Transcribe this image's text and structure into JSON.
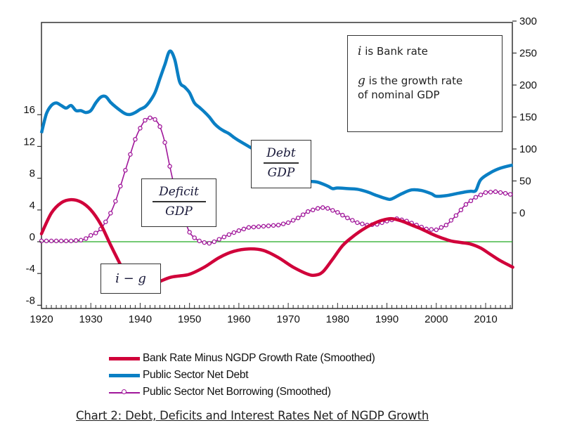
{
  "chart_data": {
    "type": "line",
    "title": "Chart 2: Debt, Deficits and Interest Rates Net of NGDP Growth",
    "xlabel": "",
    "ylabel_left": "",
    "ylabel_right": "",
    "x_range": [
      1920,
      2015.5
    ],
    "x_ticks": [
      1920,
      1930,
      1940,
      1950,
      1960,
      1970,
      1980,
      1990,
      2000,
      2010
    ],
    "y_left_range": [
      -8,
      20
    ],
    "y_left_ticks": [
      -8,
      -4,
      0,
      4,
      8,
      12,
      16
    ],
    "y_right_range": [
      -50,
      300
    ],
    "y_right_ticks": [
      0,
      50,
      100,
      150,
      200,
      250,
      300
    ],
    "grid": false,
    "zero_line": {
      "axis": "left",
      "value": 0,
      "color": "#22aa22"
    },
    "legend_position": "bottom",
    "series": [
      {
        "name": "Bank Rate Minus NGDP Growth Rate (Smoothed)",
        "axis": "left",
        "color": "#d0003a",
        "style": "thick-line",
        "x": [
          1920,
          1922,
          1924,
          1926,
          1928,
          1930,
          1932,
          1934,
          1936,
          1944,
          1946,
          1948,
          1950,
          1953,
          1956,
          1959,
          1962,
          1965,
          1968,
          1971,
          1974,
          1975.5,
          1977,
          1979,
          1981,
          1983,
          1985,
          1987,
          1989,
          1991,
          1993,
          1995,
          1997,
          1999,
          2001,
          2003,
          2005,
          2007,
          2009,
          2011,
          2013,
          2015.5
        ],
        "values": [
          1.0,
          3.6,
          4.9,
          5.3,
          5.0,
          4.0,
          2.2,
          -0.4,
          -2.9,
          -5.0,
          -4.5,
          -4.3,
          -4.1,
          -3.2,
          -2.0,
          -1.2,
          -0.9,
          -1.1,
          -2.0,
          -3.2,
          -4.1,
          -4.2,
          -3.8,
          -2.2,
          -0.5,
          0.6,
          1.5,
          2.2,
          2.7,
          2.9,
          2.6,
          2.1,
          1.6,
          1.0,
          0.5,
          0.1,
          -0.1,
          -0.3,
          -0.8,
          -1.6,
          -2.4,
          -3.2
        ]
      },
      {
        "name": "Public Sector Net Debt",
        "axis": "right",
        "color": "#0a7fc4",
        "style": "thick-line",
        "x": [
          1920,
          1921,
          1922,
          1923,
          1924,
          1925,
          1926,
          1927,
          1928,
          1929,
          1930,
          1931,
          1932,
          1933,
          1934,
          1935,
          1936,
          1937,
          1938,
          1939,
          1940,
          1941,
          1942,
          1943,
          1944,
          1945,
          1946,
          1947,
          1948,
          1949,
          1950,
          1951,
          1952,
          1953,
          1954,
          1955,
          1956,
          1957,
          1958,
          1959,
          1960,
          1962,
          1964,
          1966,
          1968,
          1970,
          1972,
          1974,
          1976,
          1978,
          1979,
          1980,
          1982,
          1984,
          1986,
          1988,
          1990,
          1991,
          1993,
          1995,
          1997,
          1999,
          2000,
          2002,
          2004,
          2006,
          2007,
          2008,
          2009,
          2011,
          2013,
          2015.5
        ],
        "values": [
          125,
          155,
          168,
          172,
          168,
          164,
          168,
          160,
          160,
          157,
          160,
          172,
          181,
          182,
          173,
          166,
          160,
          155,
          154,
          157,
          162,
          166,
          175,
          188,
          210,
          232,
          253,
          240,
          205,
          197,
          188,
          172,
          165,
          158,
          150,
          140,
          133,
          128,
          124,
          118,
          113,
          104,
          95,
          86,
          76,
          68,
          56,
          50,
          48,
          42,
          38,
          39,
          38,
          37,
          33,
          27,
          22,
          22,
          30,
          36,
          35,
          30,
          26,
          27,
          30,
          33,
          34,
          35,
          52,
          63,
          70,
          75
        ]
      },
      {
        "name": "Public Sector Net Borrowing (Smoothed)",
        "axis": "left",
        "color": "#a0169a",
        "style": "line-with-circle-markers",
        "x": [
          1920,
          1922,
          1924,
          1926,
          1928,
          1929,
          1930,
          1931,
          1932,
          1933,
          1934,
          1935,
          1936,
          1937,
          1938,
          1939,
          1940,
          1941,
          1942,
          1943,
          1944,
          1945,
          1946,
          1947,
          1948,
          1949,
          1950,
          1951,
          1952,
          1953,
          1954,
          1955,
          1956,
          1958,
          1960,
          1962,
          1964,
          1966,
          1968,
          1970,
          1972,
          1974,
          1976,
          1977,
          1978,
          1980,
          1982,
          1984,
          1986,
          1988,
          1990,
          1992,
          1994,
          1996,
          1998,
          2000,
          2002,
          2004,
          2006,
          2008,
          2010,
          2012,
          2014,
          2015.5
        ],
        "values": [
          0.1,
          0.1,
          0.1,
          0.1,
          0.2,
          0.4,
          0.8,
          1.1,
          1.6,
          2.5,
          3.6,
          5.1,
          7.0,
          9.0,
          11.0,
          12.9,
          14.3,
          15.3,
          15.6,
          15.4,
          14.5,
          12.5,
          9.5,
          6.8,
          4.8,
          2.8,
          1.2,
          0.5,
          0.1,
          -0.1,
          -0.2,
          0.0,
          0.3,
          0.9,
          1.4,
          1.8,
          1.9,
          2.0,
          2.1,
          2.4,
          3.0,
          3.8,
          4.2,
          4.3,
          4.2,
          3.7,
          3.0,
          2.4,
          2.1,
          2.2,
          2.6,
          2.9,
          2.6,
          2.1,
          1.6,
          1.5,
          2.1,
          3.3,
          4.7,
          5.6,
          6.2,
          6.3,
          6.1,
          5.9
        ]
      }
    ],
    "annotations": [
      {
        "type": "fraction",
        "numerator": "Debt",
        "denominator": "GDP",
        "refers_to": "Public Sector Net Debt"
      },
      {
        "type": "fraction",
        "numerator": "Deficit",
        "denominator": "GDP",
        "refers_to": "Public Sector Net Borrowing (Smoothed)"
      },
      {
        "type": "label",
        "text": "i − g",
        "refers_to": "Bank Rate Minus NGDP Growth Rate (Smoothed)"
      },
      {
        "type": "note",
        "lines": [
          {
            "symbol": "i",
            "text": " is Bank rate"
          },
          {
            "symbol": "g",
            "text": " is the growth rate"
          },
          {
            "symbol": "",
            "text": "of nominal GDP"
          }
        ]
      }
    ]
  },
  "legend": {
    "items": [
      {
        "label": "Bank Rate Minus NGDP Growth Rate (Smoothed)",
        "color": "#d0003a"
      },
      {
        "label": "Public Sector Net Debt",
        "color": "#0a7fc4"
      },
      {
        "label": "Public Sector Net Borrowing (Smoothed)",
        "color": "#a0169a"
      }
    ]
  },
  "caption": "Chart 2: Debt, Deficits and Interest Rates Net of NGDP Growth"
}
